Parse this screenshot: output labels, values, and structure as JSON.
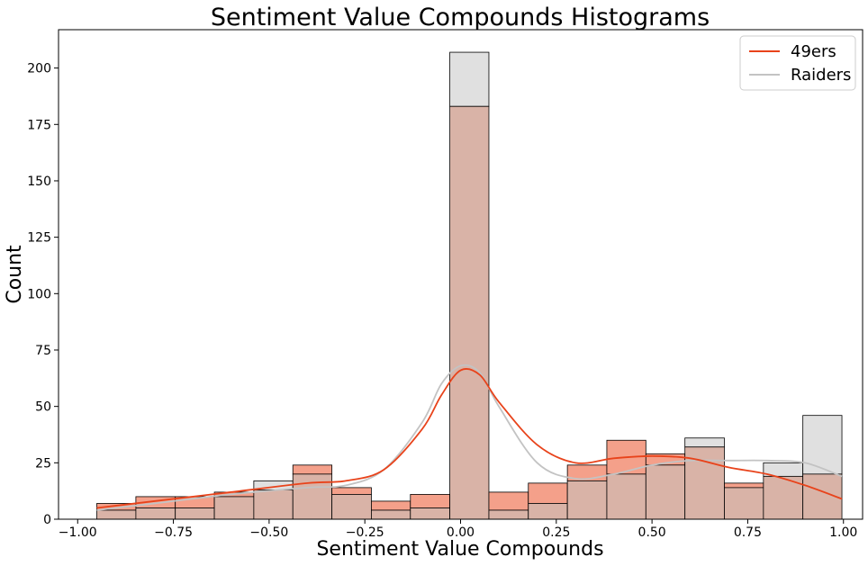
{
  "chart_data": {
    "type": "bar",
    "title": "Sentiment Value Compounds Histograms",
    "xlabel": "Sentiment Value Compounds",
    "ylabel": "Count",
    "xlim": [
      -1.05,
      1.05
    ],
    "ylim": [
      0,
      217
    ],
    "xticks": [
      -1.0,
      -0.75,
      -0.5,
      -0.25,
      0.0,
      0.25,
      0.5,
      0.75,
      1.0
    ],
    "xtick_labels": [
      "−1.00",
      "−0.75",
      "−0.50",
      "−0.25",
      "0.00",
      "0.25",
      "0.50",
      "0.75",
      "1.00"
    ],
    "yticks": [
      0,
      25,
      50,
      75,
      100,
      125,
      150,
      175,
      200
    ],
    "ytick_labels": [
      "0",
      "25",
      "50",
      "75",
      "100",
      "125",
      "150",
      "175",
      "200"
    ],
    "grid": false,
    "legend_position": "top-right",
    "bin_edges": [
      -0.95,
      -0.848,
      -0.745,
      -0.643,
      -0.54,
      -0.438,
      -0.336,
      -0.233,
      -0.131,
      -0.028,
      0.074,
      0.177,
      0.279,
      0.382,
      0.484,
      0.586,
      0.689,
      0.791,
      0.894,
      0.996
    ],
    "series": [
      {
        "name": "49ers",
        "color": "#e8431b",
        "bar_color": "#f4a08a",
        "values": [
          7,
          10,
          10,
          12,
          13,
          24,
          14,
          8,
          11,
          183,
          12,
          16,
          24,
          35,
          29,
          32,
          16,
          19,
          20
        ],
        "kde": [
          [
            -0.95,
            5
          ],
          [
            -0.8,
            8
          ],
          [
            -0.6,
            12
          ],
          [
            -0.4,
            16
          ],
          [
            -0.3,
            17
          ],
          [
            -0.2,
            22
          ],
          [
            -0.1,
            40
          ],
          [
            -0.05,
            55
          ],
          [
            0.0,
            66
          ],
          [
            0.05,
            64
          ],
          [
            0.1,
            52
          ],
          [
            0.2,
            33
          ],
          [
            0.3,
            25
          ],
          [
            0.4,
            27
          ],
          [
            0.5,
            28
          ],
          [
            0.6,
            27
          ],
          [
            0.7,
            23
          ],
          [
            0.8,
            20
          ],
          [
            0.9,
            15
          ],
          [
            0.996,
            9
          ]
        ]
      },
      {
        "name": "Raiders",
        "color": "#c3c3c3",
        "bar_color": "#e0e0e0",
        "values": [
          4,
          5,
          5,
          10,
          17,
          20,
          11,
          4,
          5,
          207,
          4,
          7,
          17,
          20,
          24,
          36,
          14,
          25,
          46
        ],
        "kde": [
          [
            -0.95,
            4
          ],
          [
            -0.8,
            7
          ],
          [
            -0.6,
            11
          ],
          [
            -0.4,
            14
          ],
          [
            -0.3,
            15
          ],
          [
            -0.2,
            22
          ],
          [
            -0.1,
            43
          ],
          [
            -0.05,
            60
          ],
          [
            0.0,
            68
          ],
          [
            0.05,
            65
          ],
          [
            0.1,
            50
          ],
          [
            0.2,
            25
          ],
          [
            0.3,
            18
          ],
          [
            0.4,
            20
          ],
          [
            0.5,
            24
          ],
          [
            0.6,
            26
          ],
          [
            0.7,
            26
          ],
          [
            0.8,
            26
          ],
          [
            0.9,
            25
          ],
          [
            0.996,
            19
          ]
        ]
      }
    ],
    "overlap_color": "#d9b3a7"
  }
}
